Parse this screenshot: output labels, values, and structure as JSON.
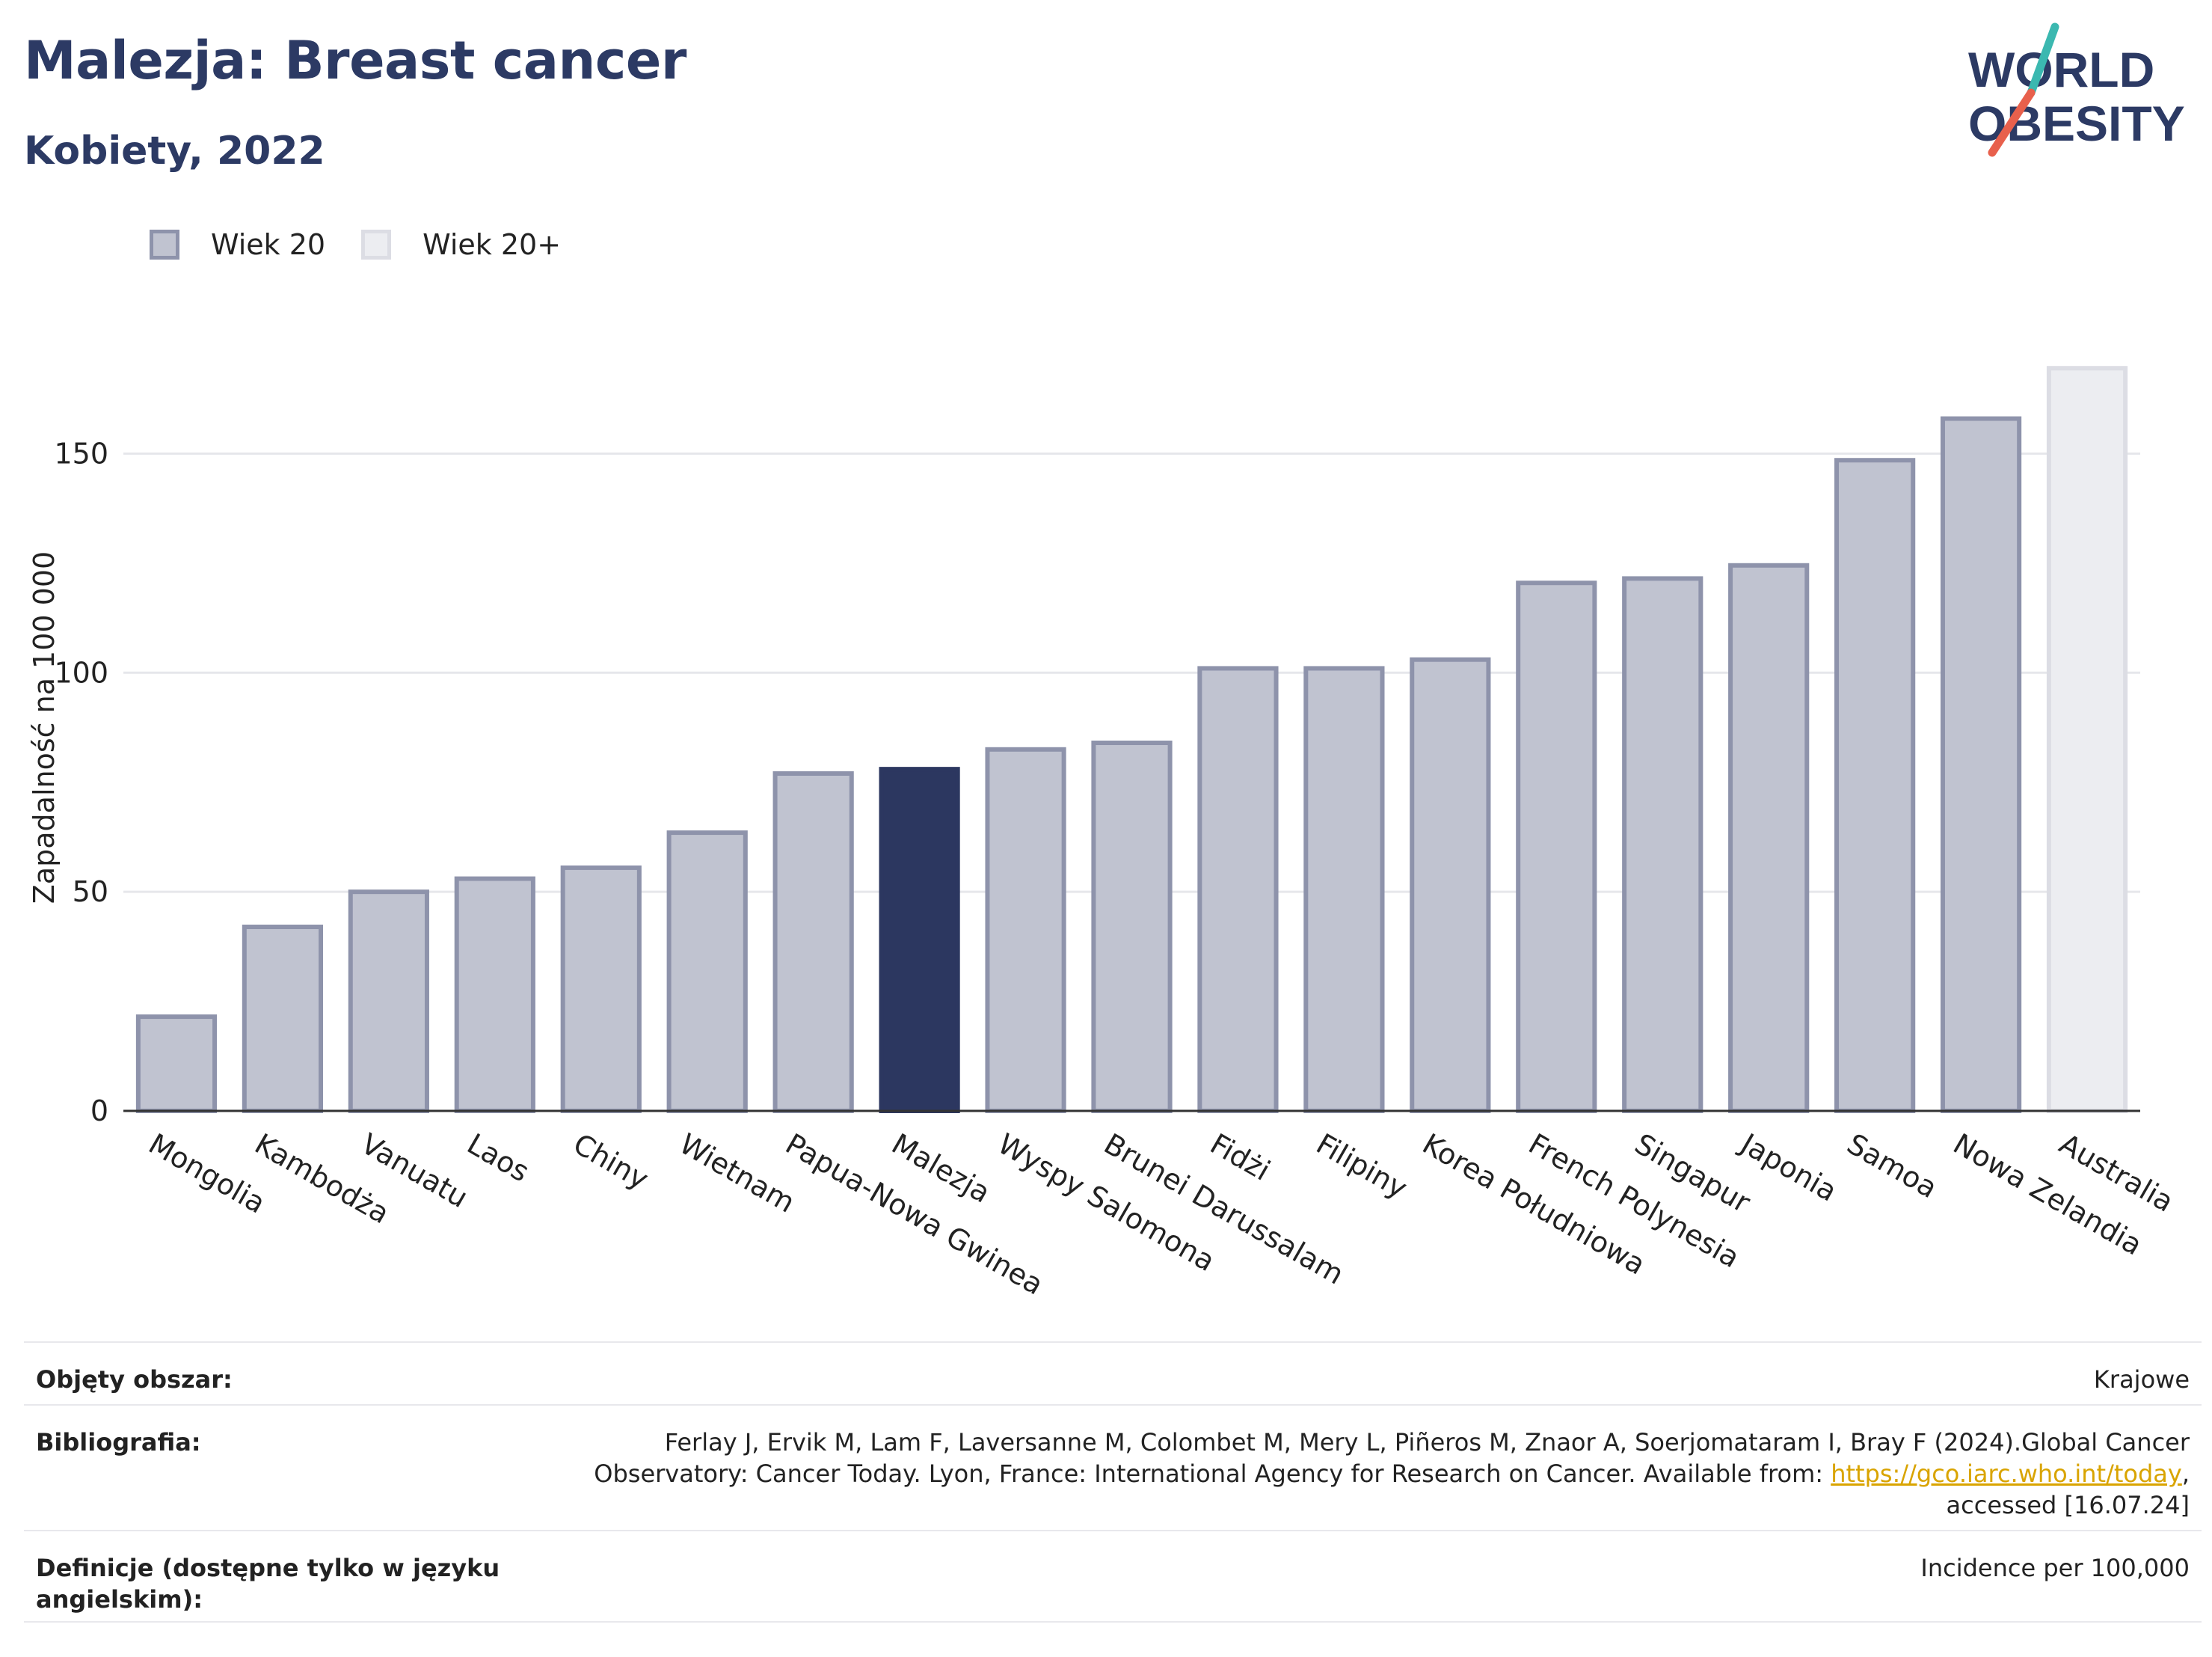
{
  "title": "Malezja: Breast cancer",
  "subtitle": "Kobiety, 2022",
  "logo": {
    "line1": "WORLD",
    "line2": "OBESITY",
    "colors": {
      "text": "#2c3a64",
      "slash_top": "#3bb8b0",
      "slash_bottom": "#e8604c"
    }
  },
  "legend": [
    {
      "label": "Wiek 20",
      "fill": "#c0c3d0",
      "stroke": "#8e93ab"
    },
    {
      "label": "Wiek 20+",
      "fill": "#ecedf1",
      "stroke": "#dcdde4"
    }
  ],
  "chart_data": {
    "type": "bar",
    "ylabel": "Zapadalność na 100 000",
    "ylim": [
      0,
      175
    ],
    "yticks": [
      0,
      50,
      100,
      150
    ],
    "grid": true,
    "categories": [
      "Mongolia",
      "Kambodża",
      "Vanuatu",
      "Laos",
      "Chiny",
      "Wietnam",
      "Papua-Nowa Gwinea",
      "Malezja",
      "Wyspy Salomona",
      "Brunei Darussalam",
      "Fidżi",
      "Filipiny",
      "Korea Południowa",
      "French Polynesia",
      "Singapur",
      "Japonia",
      "Samoa",
      "Nowa Zelandia",
      "Australia"
    ],
    "values": [
      21.5,
      42,
      50,
      53,
      55.5,
      63.5,
      77,
      78,
      82.5,
      84,
      101,
      101,
      103,
      120.5,
      121.5,
      124.5,
      148.5,
      158,
      169.5
    ],
    "groups": [
      "Wiek 20",
      "Wiek 20",
      "Wiek 20",
      "Wiek 20",
      "Wiek 20",
      "Wiek 20",
      "Wiek 20",
      "Wiek 20",
      "Wiek 20",
      "Wiek 20",
      "Wiek 20",
      "Wiek 20",
      "Wiek 20",
      "Wiek 20",
      "Wiek 20",
      "Wiek 20",
      "Wiek 20",
      "Wiek 20",
      "Wiek 20+"
    ],
    "highlight": "Malezja",
    "colors": {
      "default_fill": "#c0c3d0",
      "default_stroke": "#8e93ab",
      "highlight_fill": "#2c3760",
      "alt_fill": "#ecedf1",
      "alt_stroke": "#dcdde4",
      "grid": "#e6e7eb",
      "axis": "#333333"
    }
  },
  "info": {
    "coverage_label": "Objęty obszar:",
    "coverage_value": "Krajowe",
    "bibliography_label": "Bibliografia:",
    "bibliography_text": "Ferlay J, Ervik M, Lam F, Laversanne M, Colombet M, Mery L, Piñeros M, Znaor A, Soerjomataram I, Bray F (2024).Global Cancer Observatory: Cancer Today. Lyon, France: International Agency for Research on Cancer. Available from: ",
    "bibliography_link": "https://gco.iarc.who.int/today",
    "bibliography_suffix": ", accessed [16.07.24]",
    "definitions_label": "Definicje (dostępne tylko w języku angielskim):",
    "definitions_value": "Incidence per 100,000"
  }
}
